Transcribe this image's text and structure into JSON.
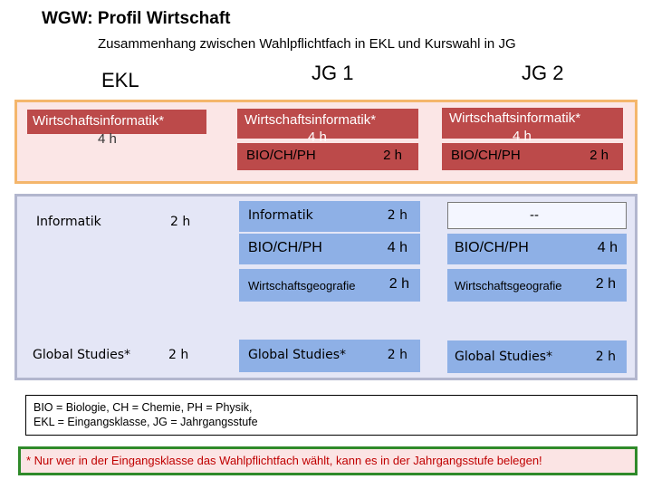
{
  "title": "WGW: Profil Wirtschaft",
  "subtitle": "Zusammenhang zwischen Wahlpflichtfach in EKL und Kurswahl in JG",
  "columns": {
    "ekl": "EKL",
    "jg1": "JG 1",
    "jg2": "JG 2"
  },
  "top": {
    "ekl": {
      "subject": "Wirtschaftsinformatik*",
      "hours": "4 h"
    },
    "jg1": {
      "subject": "Wirtschaftsinformatik*",
      "hours": "4 h",
      "sub_subject": "BIO/CH/PH",
      "sub_hours": "2 h"
    },
    "jg2": {
      "subject": "Wirtschaftsinformatik*",
      "hours": "4 h",
      "sub_subject": "BIO/CH/PH",
      "sub_hours": "2 h"
    }
  },
  "bottom": {
    "ekl": [
      {
        "subject": "Informatik",
        "hours": "2 h"
      },
      {
        "subject": "Global Studies*",
        "hours": "2 h"
      }
    ],
    "jg1": [
      {
        "subject": "Informatik",
        "hours": "2 h"
      },
      {
        "subject": "BIO/CH/PH",
        "hours": "4 h"
      },
      {
        "subject": "Wirtschaftsgeografie",
        "hours": "2 h"
      },
      {
        "subject": "Global Studies*",
        "hours": "2 h"
      }
    ],
    "jg2": [
      {
        "subject": "--",
        "hours": ""
      },
      {
        "subject": "BIO/CH/PH",
        "hours": "4 h"
      },
      {
        "subject": "Wirtschaftsgeografie",
        "hours": "2 h"
      },
      {
        "subject": "Global Studies*",
        "hours": "2 h"
      }
    ]
  },
  "footnote": {
    "line1": "BIO = Biologie, CH = Chemie, PH = Physik,",
    "line2": "EKL = Eingangsklasse, JG = Jahrgangsstufe"
  },
  "note": "* Nur wer in der Eingangsklasse das Wahlpflichtfach wählt, kann es in der Jahrgangsstufe belegen!",
  "colors": {
    "red_box": "#bc4a4a",
    "blue_box": "#8eb0e6",
    "top_band": "#fbe6e6",
    "top_border": "#f4b66c",
    "bottom_band": "#e4e6f6",
    "note_border": "#2f8a2a",
    "note_text": "#c00000"
  }
}
